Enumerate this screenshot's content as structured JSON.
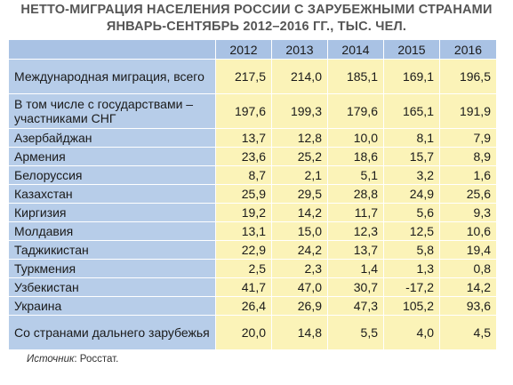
{
  "title": {
    "line1": "НЕТТО-МИГРАЦИЯ НАСЕЛЕНИЯ РОССИИ С ЗАРУБЕЖНЫМИ СТРАНАМИ",
    "line2": "ЯНВАРЬ-СЕНТЯБРЬ 2012–2016 ГГ., ТЫС. ЧЕЛ."
  },
  "years": [
    "2012",
    "2013",
    "2014",
    "2015",
    "2016"
  ],
  "rows": [
    {
      "label": "Международная миграция, всего",
      "values": [
        "217,5",
        "214,0",
        "185,1",
        "169,1",
        "196,5"
      ],
      "tall": true
    },
    {
      "label": "В том числе с государствами – участниками СНГ",
      "values": [
        "197,6",
        "199,3",
        "179,6",
        "165,1",
        "191,9"
      ],
      "tall": true
    },
    {
      "label": "Азербайджан",
      "values": [
        "13,7",
        "12,8",
        "10,0",
        "8,1",
        "7,9"
      ]
    },
    {
      "label": "Армения",
      "values": [
        "23,6",
        "25,2",
        "18,6",
        "15,7",
        "8,9"
      ]
    },
    {
      "label": "Белоруссия",
      "values": [
        "8,7",
        "2,1",
        "5,1",
        "3,2",
        "1,6"
      ]
    },
    {
      "label": "Казахстан",
      "values": [
        "25,9",
        "29,5",
        "28,8",
        "24,9",
        "25,6"
      ]
    },
    {
      "label": "Киргизия",
      "values": [
        "19,2",
        "14,2",
        "11,7",
        "5,6",
        "9,3"
      ]
    },
    {
      "label": "Молдавия",
      "values": [
        "13,1",
        "15,0",
        "12,3",
        "12,5",
        "10,6"
      ]
    },
    {
      "label": "Таджикистан",
      "values": [
        "22,9",
        "24,2",
        "13,7",
        "5,8",
        "19,4"
      ]
    },
    {
      "label": "Туркмения",
      "values": [
        "2,5",
        "2,3",
        "1,4",
        "1,3",
        "0,8"
      ]
    },
    {
      "label": "Узбекистан",
      "values": [
        "41,7",
        "47,0",
        "30,7",
        "-17,2",
        "14,2"
      ]
    },
    {
      "label": "Украина",
      "values": [
        "26,4",
        "26,9",
        "47,3",
        "105,2",
        "93,6"
      ]
    },
    {
      "label": "Со странами дальнего зарубежья",
      "values": [
        "20,0",
        "14,8",
        "5,5",
        "4,0",
        "4,5"
      ],
      "tall": true
    }
  ],
  "source": {
    "label": "Источник",
    "text": ": Росстат."
  }
}
